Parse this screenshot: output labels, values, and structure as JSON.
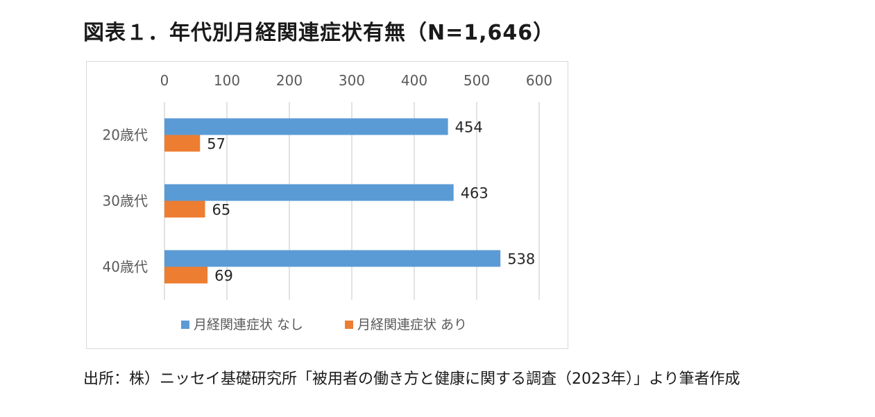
{
  "title": "図表１．年代別月経関連症状有無（N=1,646）",
  "source": "出所：株）ニッセイ基礎研究所「被用者の働き方と健康に関する調査（2023年）」より筆者作成",
  "chart_data": {
    "type": "bar",
    "orientation": "horizontal",
    "categories": [
      "20歳代",
      "30歳代",
      "40歳代"
    ],
    "series": [
      {
        "name": "月経関連症状 なし",
        "values": [
          454,
          463,
          538
        ],
        "color": "#5b9bd5"
      },
      {
        "name": "月経関連症状 あり",
        "values": [
          57,
          65,
          69
        ],
        "color": "#ed7d31"
      }
    ],
    "xlim": [
      0,
      600
    ],
    "xticks": [
      0,
      100,
      200,
      300,
      400,
      500,
      600
    ],
    "xaxis_position": "top",
    "grid": true,
    "legend": "bottom"
  }
}
